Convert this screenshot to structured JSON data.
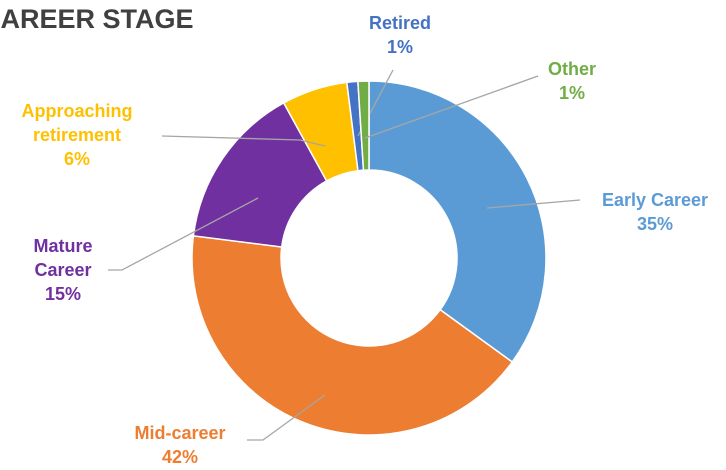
{
  "chart_data": {
    "type": "pie",
    "title": "CAREER STAGE",
    "categories": [
      "Early Career",
      "Mid-career",
      "Mature Career",
      "Approaching retirement",
      "Retired",
      "Other"
    ],
    "values": [
      35,
      42,
      15,
      6,
      1,
      1
    ],
    "value_labels": [
      "35%",
      "42%",
      "15%",
      "6%",
      "1%",
      "1%"
    ],
    "colors": [
      "#5b9bd5",
      "#ed7d31",
      "#7030a0",
      "#ffc000",
      "#4472c4",
      "#70ad47"
    ],
    "donut": true
  }
}
